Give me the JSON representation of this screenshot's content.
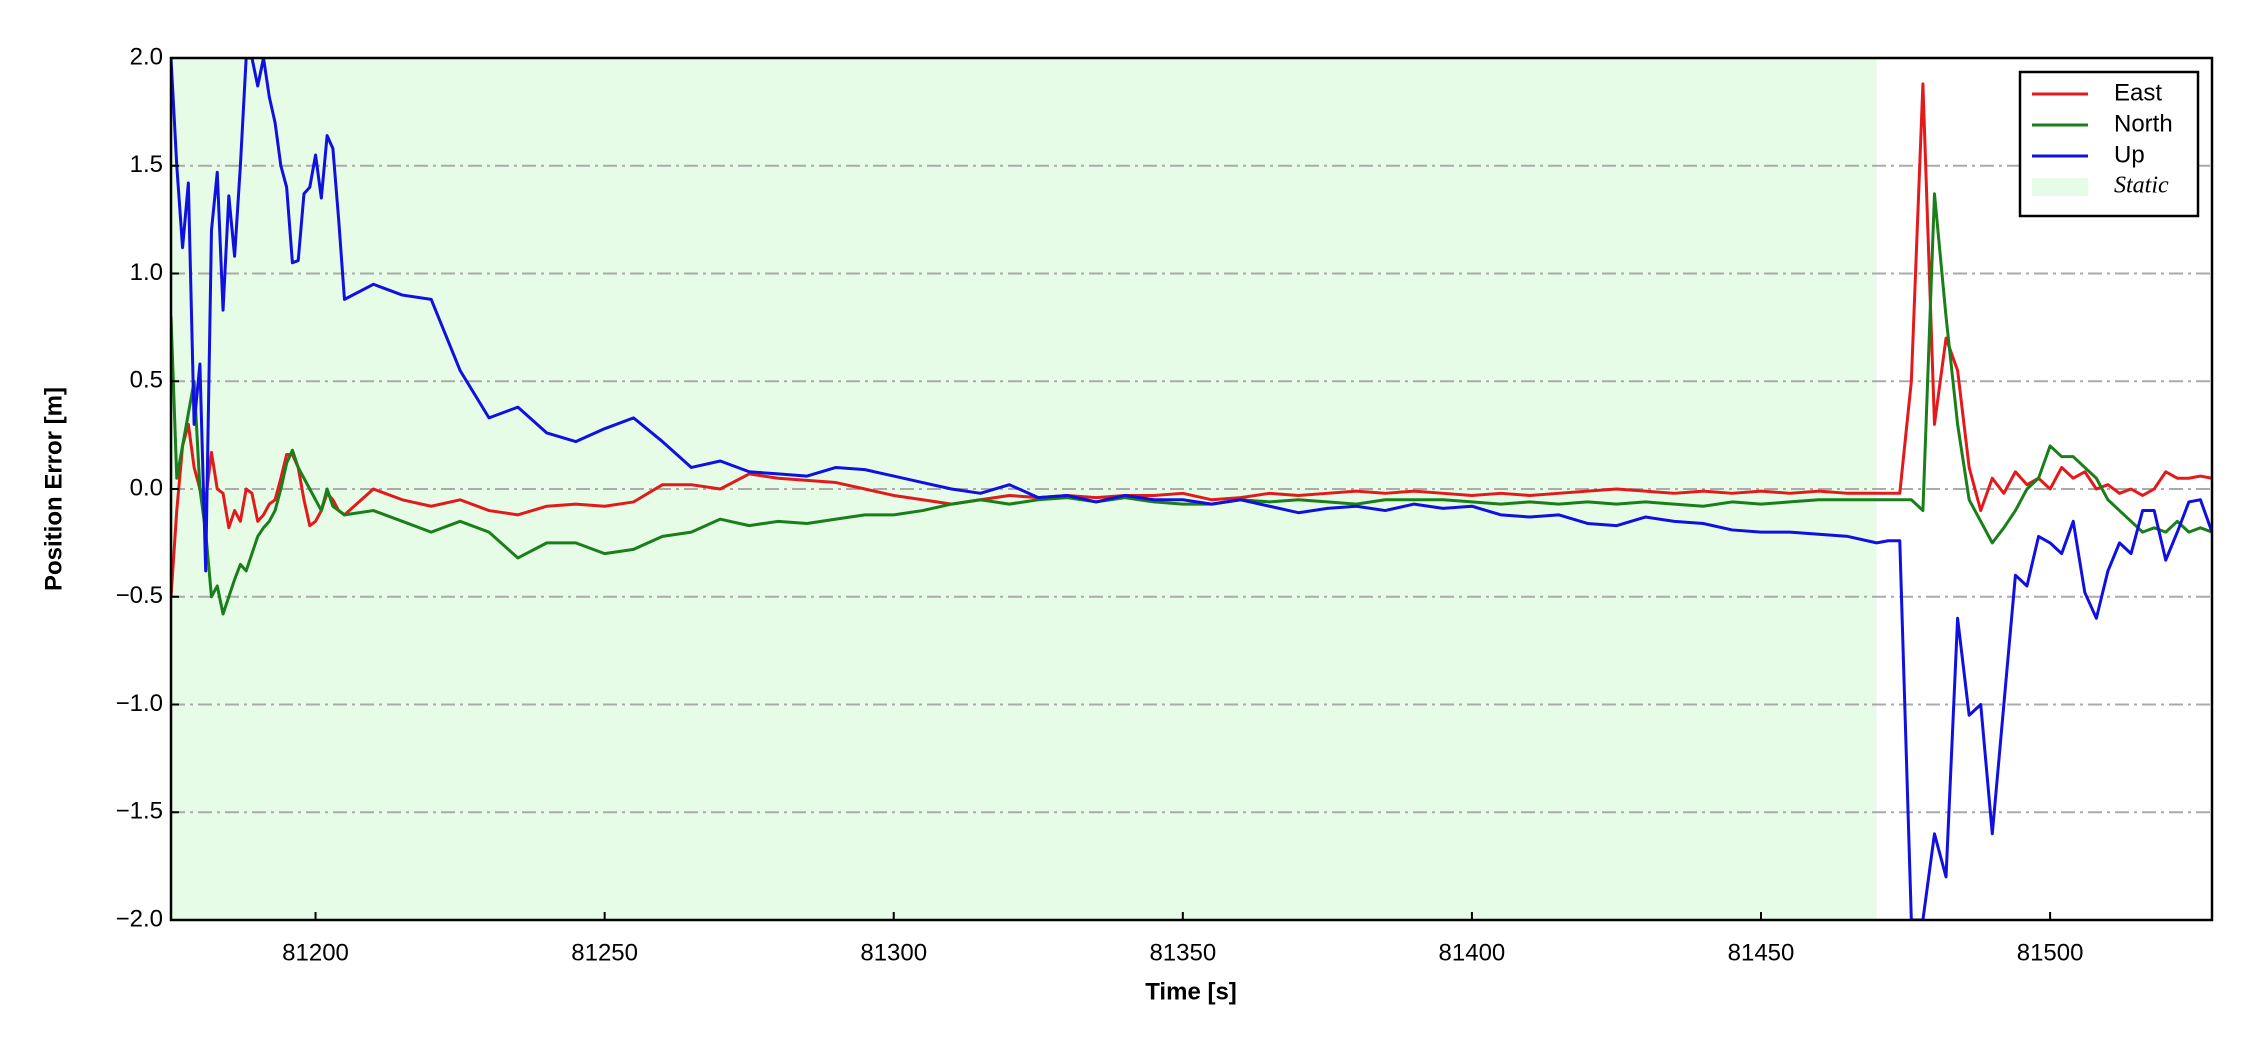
{
  "chart_data": {
    "type": "line",
    "xlabel": "Time [s]",
    "ylabel": "Position Error [m]",
    "xlim": [
      81175,
      81528
    ],
    "ylim": [
      -2.0,
      2.0
    ],
    "xticks": [
      81200,
      81250,
      81300,
      81350,
      81400,
      81450,
      81500
    ],
    "yticks": [
      {
        "value": -2.0,
        "label": "−2.0"
      },
      {
        "value": -1.5,
        "label": "−1.5"
      },
      {
        "value": -1.0,
        "label": "−1.0"
      },
      {
        "value": -0.5,
        "label": "−0.5"
      },
      {
        "value": 0.0,
        "label": "0.0"
      },
      {
        "value": 0.5,
        "label": "0.5"
      },
      {
        "value": 1.0,
        "label": "1.0"
      },
      {
        "value": 1.5,
        "label": "1.5"
      },
      {
        "value": 2.0,
        "label": "2.0"
      }
    ],
    "grid": true,
    "legend": "upper right",
    "span": {
      "name": "Static",
      "start": 81175,
      "end": 81470,
      "color": "#e6fce6"
    },
    "x": [
      81175,
      81176,
      81177,
      81178,
      81179,
      81180,
      81181,
      81182,
      81183,
      81184,
      81185,
      81186,
      81187,
      81188,
      81189,
      81190,
      81191,
      81192,
      81193,
      81194,
      81195,
      81196,
      81197,
      81198,
      81199,
      81200,
      81201,
      81202,
      81203,
      81204,
      81205,
      81210,
      81215,
      81220,
      81225,
      81230,
      81235,
      81240,
      81245,
      81250,
      81255,
      81260,
      81265,
      81270,
      81275,
      81280,
      81285,
      81290,
      81295,
      81300,
      81305,
      81310,
      81315,
      81320,
      81325,
      81330,
      81335,
      81340,
      81345,
      81350,
      81355,
      81360,
      81365,
      81370,
      81375,
      81380,
      81385,
      81390,
      81395,
      81400,
      81405,
      81410,
      81415,
      81420,
      81425,
      81430,
      81435,
      81440,
      81445,
      81450,
      81455,
      81460,
      81465,
      81470,
      81472,
      81474,
      81476,
      81478,
      81480,
      81482,
      81484,
      81486,
      81488,
      81490,
      81492,
      81494,
      81496,
      81498,
      81500,
      81502,
      81504,
      81506,
      81508,
      81510,
      81512,
      81514,
      81516,
      81518,
      81520,
      81522,
      81524,
      81526,
      81528
    ],
    "series": [
      {
        "name": "East",
        "color": "#e31a1c",
        "values": [
          -0.5,
          -0.1,
          0.2,
          0.3,
          0.1,
          0.0,
          -0.05,
          0.17,
          0.0,
          -0.02,
          -0.18,
          -0.1,
          -0.15,
          0.0,
          -0.02,
          -0.15,
          -0.12,
          -0.07,
          -0.05,
          0.05,
          0.16,
          0.16,
          0.1,
          -0.05,
          -0.17,
          -0.15,
          -0.1,
          -0.02,
          -0.05,
          -0.1,
          -0.12,
          0.0,
          -0.05,
          -0.08,
          -0.05,
          -0.1,
          -0.12,
          -0.08,
          -0.07,
          -0.08,
          -0.06,
          0.02,
          0.02,
          0.0,
          0.07,
          0.05,
          0.04,
          0.03,
          0.0,
          -0.03,
          -0.05,
          -0.07,
          -0.05,
          -0.03,
          -0.04,
          -0.03,
          -0.04,
          -0.03,
          -0.03,
          -0.02,
          -0.05,
          -0.04,
          -0.02,
          -0.03,
          -0.02,
          -0.01,
          -0.02,
          -0.01,
          -0.02,
          -0.03,
          -0.02,
          -0.03,
          -0.02,
          -0.01,
          0.0,
          -0.01,
          -0.02,
          -0.01,
          -0.02,
          -0.01,
          -0.02,
          -0.01,
          -0.02,
          -0.02,
          -0.02,
          -0.02,
          0.5,
          1.88,
          0.3,
          0.7,
          0.55,
          0.1,
          -0.1,
          0.05,
          -0.02,
          0.08,
          0.02,
          0.05,
          0.0,
          0.1,
          0.05,
          0.08,
          0.0,
          0.02,
          -0.02,
          0.0,
          -0.03,
          0.0,
          0.08,
          0.05,
          0.05,
          0.06,
          0.05
        ]
      },
      {
        "name": "North",
        "color": "#1a7f1a",
        "values": [
          0.8,
          0.05,
          0.2,
          0.35,
          0.5,
          0.0,
          -0.2,
          -0.5,
          -0.45,
          -0.58,
          -0.5,
          -0.42,
          -0.35,
          -0.38,
          -0.3,
          -0.22,
          -0.18,
          -0.15,
          -0.1,
          0.0,
          0.12,
          0.18,
          0.1,
          0.05,
          0.0,
          -0.05,
          -0.1,
          0.0,
          -0.08,
          -0.1,
          -0.12,
          -0.1,
          -0.15,
          -0.2,
          -0.15,
          -0.2,
          -0.32,
          -0.25,
          -0.25,
          -0.3,
          -0.28,
          -0.22,
          -0.2,
          -0.14,
          -0.17,
          -0.15,
          -0.16,
          -0.14,
          -0.12,
          -0.12,
          -0.1,
          -0.07,
          -0.05,
          -0.07,
          -0.05,
          -0.04,
          -0.06,
          -0.04,
          -0.06,
          -0.07,
          -0.07,
          -0.05,
          -0.06,
          -0.05,
          -0.06,
          -0.07,
          -0.05,
          -0.05,
          -0.05,
          -0.06,
          -0.07,
          -0.06,
          -0.07,
          -0.06,
          -0.07,
          -0.06,
          -0.07,
          -0.08,
          -0.06,
          -0.07,
          -0.06,
          -0.05,
          -0.05,
          -0.05,
          -0.05,
          -0.05,
          -0.05,
          -0.1,
          1.37,
          0.8,
          0.3,
          -0.05,
          -0.15,
          -0.25,
          -0.18,
          -0.1,
          0.0,
          0.05,
          0.2,
          0.15,
          0.15,
          0.1,
          0.05,
          -0.05,
          -0.1,
          -0.15,
          -0.2,
          -0.18,
          -0.2,
          -0.15,
          -0.2,
          -0.18,
          -0.2
        ]
      },
      {
        "name": "Up",
        "color": "#1010e0",
        "values": [
          2.0,
          1.5,
          1.12,
          1.42,
          0.3,
          0.58,
          -0.38,
          1.2,
          1.47,
          0.83,
          1.36,
          1.08,
          1.5,
          2.0,
          2.0,
          1.87,
          2.0,
          1.82,
          1.7,
          1.5,
          1.4,
          1.05,
          1.06,
          1.37,
          1.4,
          1.55,
          1.35,
          1.64,
          1.58,
          1.25,
          0.88,
          0.95,
          0.9,
          0.88,
          0.55,
          0.33,
          0.38,
          0.26,
          0.22,
          0.28,
          0.33,
          0.22,
          0.1,
          0.13,
          0.08,
          0.07,
          0.06,
          0.1,
          0.09,
          0.06,
          0.03,
          0.0,
          -0.02,
          0.02,
          -0.04,
          -0.03,
          -0.06,
          -0.03,
          -0.05,
          -0.05,
          -0.07,
          -0.05,
          -0.08,
          -0.11,
          -0.09,
          -0.08,
          -0.1,
          -0.07,
          -0.09,
          -0.08,
          -0.12,
          -0.13,
          -0.12,
          -0.16,
          -0.17,
          -0.13,
          -0.15,
          -0.16,
          -0.19,
          -0.2,
          -0.2,
          -0.21,
          -0.22,
          -0.25,
          -0.24,
          -0.24,
          -2.0,
          -2.0,
          -1.6,
          -1.8,
          -0.6,
          -1.05,
          -1.0,
          -1.6,
          -1.0,
          -0.4,
          -0.45,
          -0.22,
          -0.25,
          -0.3,
          -0.15,
          -0.48,
          -0.6,
          -0.38,
          -0.25,
          -0.3,
          -0.1,
          -0.1,
          -0.33,
          -0.2,
          -0.06,
          -0.05,
          -0.2
        ]
      }
    ]
  }
}
